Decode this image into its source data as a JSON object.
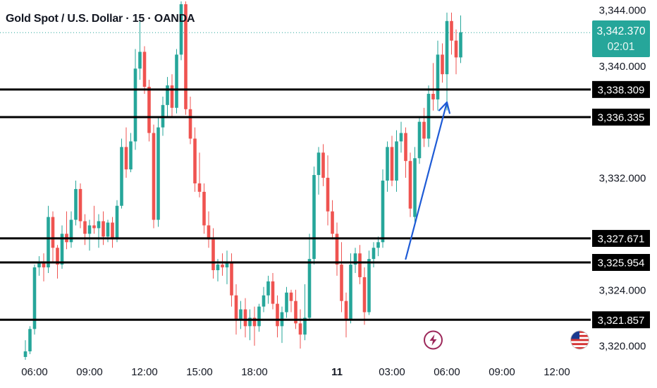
{
  "header": {
    "title": "Gold Spot / U.S. Dollar · 15 · OANDA"
  },
  "price_badge": {
    "price": "3,342.370",
    "countdown": "02:01"
  },
  "colors": {
    "up": "#26a69a",
    "down": "#ef5350",
    "level_line": "#000000",
    "arrow": "#1e5bd6",
    "badge": "#26a69a",
    "axis_text": "#131722",
    "event_lightning": "#9c2759"
  },
  "icons": {
    "lightning_event": "lightning-icon",
    "us_event": "us-flag-icon"
  },
  "chart_data": {
    "type": "candlestick",
    "y_axis": {
      "side": "right",
      "ylim": [
        3319.1,
        3344.5
      ],
      "ticks": [
        {
          "value": 3344,
          "label": "3,344.000"
        },
        {
          "value": 3340,
          "label": "3,340.000"
        },
        {
          "value": 3332,
          "label": "3,332.000"
        },
        {
          "value": 3324,
          "label": "3,324.000"
        },
        {
          "value": 3320,
          "label": "3,320.000"
        }
      ]
    },
    "x_axis": {
      "ticks": [
        {
          "bar": 2,
          "label": "06:00"
        },
        {
          "bar": 14,
          "label": "09:00"
        },
        {
          "bar": 26,
          "label": "12:00"
        },
        {
          "bar": 38,
          "label": "15:00"
        },
        {
          "bar": 50,
          "label": "18:00"
        },
        {
          "bar": 68,
          "label": "11",
          "bold": true
        },
        {
          "bar": 80,
          "label": "03:00"
        },
        {
          "bar": 92,
          "label": "06:00"
        },
        {
          "bar": 104,
          "label": "09:00"
        },
        {
          "bar": 116,
          "label": "12:00"
        }
      ]
    },
    "current_price": 3342.37,
    "levels": [
      {
        "value": 3338.309,
        "label": "3,338.309"
      },
      {
        "value": 3336.335,
        "label": "3,336.335"
      },
      {
        "value": 3327.671,
        "label": "3,327.671"
      },
      {
        "value": 3325.954,
        "label": "3,325.954"
      },
      {
        "value": 3321.857,
        "label": "3,321.857"
      }
    ],
    "events": [
      {
        "bar": 89,
        "type": "lightning"
      },
      {
        "bar": 121,
        "type": "us-flag"
      }
    ],
    "arrow": {
      "from": {
        "bar": 83,
        "price": 3326.2
      },
      "to": {
        "bar": 92,
        "price": 3337.4
      }
    },
    "candles": [
      [
        3319.2,
        3320.4,
        3319.0,
        3319.6
      ],
      [
        3319.6,
        3321.4,
        3319.4,
        3321.2
      ],
      [
        3321.2,
        3325.8,
        3320.8,
        3325.6
      ],
      [
        3325.6,
        3326.4,
        3325.0,
        3326.0
      ],
      [
        3326.0,
        3326.6,
        3324.6,
        3325.6
      ],
      [
        3325.6,
        3330.0,
        3325.2,
        3329.2
      ],
      [
        3329.2,
        3329.6,
        3326.0,
        3327.0
      ],
      [
        3327.0,
        3327.2,
        3324.8,
        3325.8
      ],
      [
        3325.8,
        3328.6,
        3325.5,
        3328.0
      ],
      [
        3328.0,
        3329.6,
        3326.9,
        3327.4
      ],
      [
        3327.4,
        3329.6,
        3327.0,
        3329.0
      ],
      [
        3329.0,
        3331.8,
        3328.6,
        3331.2
      ],
      [
        3331.2,
        3331.6,
        3328.4,
        3328.9
      ],
      [
        3328.9,
        3329.4,
        3327.2,
        3328.0
      ],
      [
        3328.0,
        3329.0,
        3326.8,
        3328.6
      ],
      [
        3328.6,
        3330.0,
        3328.0,
        3328.4
      ],
      [
        3328.4,
        3329.4,
        3327.0,
        3328.9
      ],
      [
        3328.9,
        3329.6,
        3327.2,
        3327.8
      ],
      [
        3327.8,
        3329.0,
        3327.4,
        3328.8
      ],
      [
        3328.8,
        3329.2,
        3327.0,
        3327.6
      ],
      [
        3327.6,
        3330.4,
        3327.4,
        3330.0
      ],
      [
        3330.0,
        3334.8,
        3329.8,
        3334.2
      ],
      [
        3334.2,
        3335.6,
        3332.0,
        3332.6
      ],
      [
        3332.6,
        3335.2,
        3332.4,
        3334.6
      ],
      [
        3334.6,
        3341.2,
        3334.0,
        3339.8
      ],
      [
        3339.8,
        3343.2,
        3339.0,
        3341.0
      ],
      [
        3341.0,
        3341.4,
        3338.0,
        3338.5
      ],
      [
        3338.5,
        3339.0,
        3334.6,
        3335.2
      ],
      [
        3335.2,
        3335.8,
        3328.4,
        3329.0
      ],
      [
        3329.0,
        3336.4,
        3328.5,
        3335.6
      ],
      [
        3335.6,
        3337.8,
        3335.0,
        3337.2
      ],
      [
        3337.2,
        3339.2,
        3336.4,
        3338.6
      ],
      [
        3338.6,
        3339.4,
        3336.4,
        3337.0
      ],
      [
        3337.0,
        3341.2,
        3336.6,
        3340.8
      ],
      [
        3340.8,
        3344.6,
        3340.4,
        3344.4
      ],
      [
        3344.4,
        3344.6,
        3336.5,
        3336.9
      ],
      [
        3336.9,
        3337.8,
        3334.4,
        3334.8
      ],
      [
        3334.8,
        3335.6,
        3331.0,
        3331.6
      ],
      [
        3331.6,
        3333.8,
        3330.6,
        3331.0
      ],
      [
        3331.0,
        3331.6,
        3328.0,
        3328.6
      ],
      [
        3328.6,
        3329.6,
        3327.0,
        3327.6
      ],
      [
        3327.6,
        3328.4,
        3324.8,
        3325.4
      ],
      [
        3325.4,
        3326.2,
        3324.6,
        3325.8
      ],
      [
        3325.8,
        3326.6,
        3325.0,
        3325.6
      ],
      [
        3325.6,
        3326.8,
        3324.4,
        3326.0
      ],
      [
        3326.0,
        3326.6,
        3322.8,
        3323.6
      ],
      [
        3323.6,
        3324.4,
        3320.8,
        3321.8
      ],
      [
        3321.8,
        3323.2,
        3321.2,
        3322.6
      ],
      [
        3322.6,
        3323.4,
        3320.6,
        3321.4
      ],
      [
        3321.4,
        3322.6,
        3320.4,
        3322.0
      ],
      [
        3322.0,
        3322.8,
        3320.0,
        3321.4
      ],
      [
        3321.4,
        3323.0,
        3321.0,
        3322.8
      ],
      [
        3322.8,
        3324.2,
        3322.4,
        3323.6
      ],
      [
        3323.6,
        3325.0,
        3323.0,
        3324.6
      ],
      [
        3324.6,
        3325.2,
        3322.6,
        3323.0
      ],
      [
        3323.0,
        3323.6,
        3320.6,
        3321.4
      ],
      [
        3321.4,
        3322.8,
        3320.2,
        3322.4
      ],
      [
        3322.4,
        3324.2,
        3322.0,
        3323.8
      ],
      [
        3323.8,
        3324.0,
        3322.4,
        3323.2
      ],
      [
        3323.2,
        3324.0,
        3321.2,
        3321.6
      ],
      [
        3321.6,
        3322.6,
        3319.8,
        3320.8
      ],
      [
        3320.8,
        3324.4,
        3320.4,
        3322.0
      ],
      [
        3322.0,
        3328.0,
        3321.8,
        3326.2
      ],
      [
        3326.2,
        3332.8,
        3325.8,
        3332.2
      ],
      [
        3332.2,
        3334.2,
        3330.8,
        3333.8
      ],
      [
        3333.8,
        3334.4,
        3331.4,
        3332.0
      ],
      [
        3332.0,
        3333.6,
        3328.6,
        3329.6
      ],
      [
        3329.6,
        3330.4,
        3327.6,
        3328.0
      ],
      [
        3328.0,
        3328.8,
        3325.0,
        3325.8
      ],
      [
        3325.8,
        3327.4,
        3322.4,
        3323.2
      ],
      [
        3323.2,
        3323.8,
        3320.6,
        3321.8
      ],
      [
        3321.8,
        3326.6,
        3321.6,
        3325.8
      ],
      [
        3325.8,
        3327.0,
        3325.2,
        3326.6
      ],
      [
        3326.6,
        3327.2,
        3324.4,
        3324.9
      ],
      [
        3324.9,
        3325.6,
        3321.5,
        3322.4
      ],
      [
        3322.4,
        3326.8,
        3322.2,
        3326.2
      ],
      [
        3326.2,
        3327.4,
        3325.6,
        3327.0
      ],
      [
        3327.0,
        3327.8,
        3326.4,
        3327.4
      ],
      [
        3327.4,
        3332.6,
        3327.0,
        3331.8
      ],
      [
        3331.8,
        3334.6,
        3331.0,
        3334.2
      ],
      [
        3334.2,
        3335.0,
        3331.4,
        3331.8
      ],
      [
        3331.8,
        3335.4,
        3331.0,
        3334.6
      ],
      [
        3334.6,
        3336.0,
        3333.8,
        3335.2
      ],
      [
        3335.2,
        3335.6,
        3332.0,
        3333.2
      ],
      [
        3333.2,
        3333.8,
        3329.2,
        3329.8
      ],
      [
        3329.2,
        3334.2,
        3328.8,
        3333.4
      ],
      [
        3333.4,
        3336.4,
        3333.0,
        3336.0
      ],
      [
        3336.0,
        3337.0,
        3334.2,
        3334.8
      ],
      [
        3334.8,
        3338.6,
        3334.2,
        3338.0
      ],
      [
        3338.0,
        3340.2,
        3336.8,
        3337.6
      ],
      [
        3337.6,
        3341.8,
        3336.8,
        3340.8
      ],
      [
        3340.8,
        3341.6,
        3338.8,
        3339.4
      ],
      [
        3339.4,
        3343.8,
        3336.8,
        3343.2
      ],
      [
        3343.2,
        3343.8,
        3340.8,
        3341.8
      ],
      [
        3341.8,
        3342.6,
        3339.4,
        3340.6
      ],
      [
        3340.6,
        3343.6,
        3340.2,
        3342.4
      ]
    ]
  }
}
